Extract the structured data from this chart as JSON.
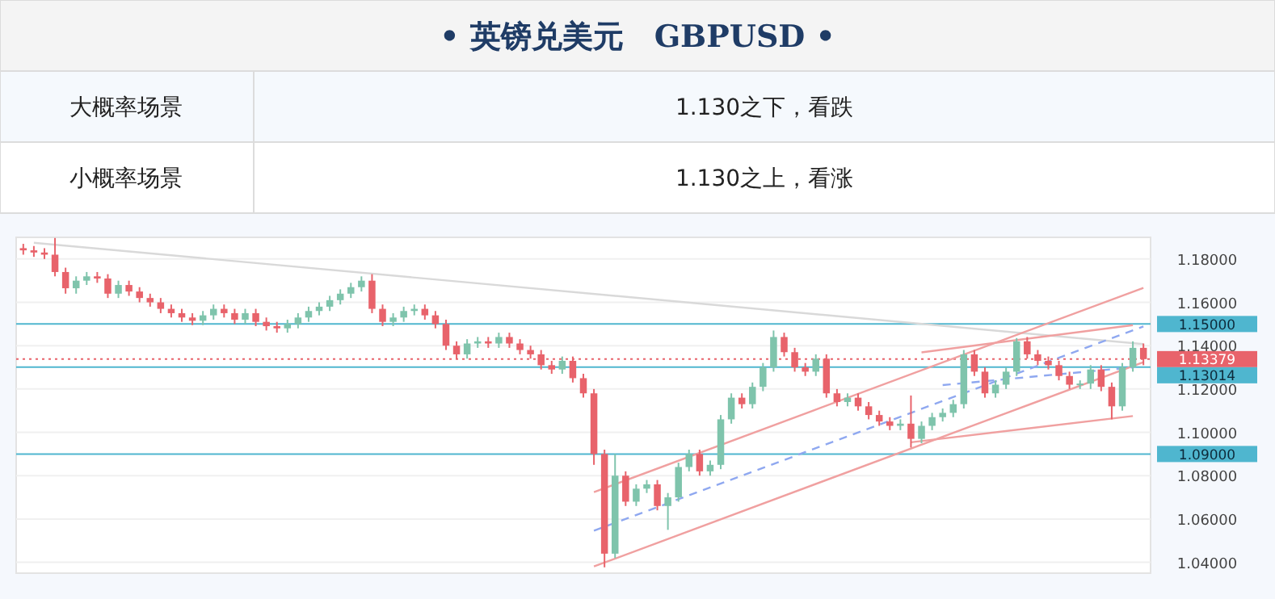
{
  "chart_data": {
    "type": "candlestick",
    "title": "• 英镑兑美元　GBPUSD •",
    "annotations": [
      "大概率场景",
      "1.130之下，看跌",
      "小概率场景",
      "1.130之上，看涨"
    ],
    "categories": [
      null,
      null,
      null,
      null,
      null,
      null,
      null,
      null,
      null,
      null,
      null,
      null,
      null,
      null,
      null,
      null,
      null,
      null,
      null,
      null,
      null,
      null,
      null,
      null,
      null,
      null,
      null,
      null,
      null,
      null,
      null,
      null,
      null,
      null,
      null,
      null,
      null,
      null,
      null,
      null,
      null,
      null,
      null,
      null,
      null,
      null,
      null,
      null,
      null,
      null,
      null,
      null,
      null,
      null,
      null,
      null,
      null,
      null,
      null,
      null,
      null,
      null,
      null,
      null,
      null,
      null,
      null,
      null,
      null,
      null,
      null,
      null,
      null,
      null,
      null,
      null,
      null,
      null,
      null,
      null,
      null,
      null,
      null,
      null,
      null,
      null,
      null,
      null,
      null,
      null,
      null,
      null,
      null,
      null,
      null,
      null,
      null,
      null,
      null,
      null,
      null,
      null,
      null,
      null,
      null,
      null,
      null
    ],
    "ohlc": [
      [
        1.185,
        1.187,
        1.182,
        1.184
      ],
      [
        1.184,
        1.186,
        1.181,
        1.183
      ],
      [
        1.183,
        1.185,
        1.18,
        1.182
      ],
      [
        1.182,
        1.1897,
        1.172,
        1.174
      ],
      [
        1.174,
        1.176,
        1.164,
        1.1665
      ],
      [
        1.1665,
        1.172,
        1.164,
        1.17
      ],
      [
        1.17,
        1.174,
        1.168,
        1.172
      ],
      [
        1.172,
        1.174,
        1.169,
        1.171
      ],
      [
        1.171,
        1.173,
        1.162,
        1.164
      ],
      [
        1.164,
        1.17,
        1.162,
        1.168
      ],
      [
        1.168,
        1.17,
        1.163,
        1.165
      ],
      [
        1.165,
        1.167,
        1.16,
        1.162
      ],
      [
        1.162,
        1.164,
        1.158,
        1.16
      ],
      [
        1.16,
        1.162,
        1.155,
        1.157
      ],
      [
        1.157,
        1.159,
        1.153,
        1.155
      ],
      [
        1.155,
        1.157,
        1.151,
        1.153
      ],
      [
        1.153,
        1.155,
        1.1495,
        1.1515
      ],
      [
        1.1515,
        1.156,
        1.1495,
        1.154
      ],
      [
        1.154,
        1.159,
        1.152,
        1.157
      ],
      [
        1.157,
        1.159,
        1.153,
        1.155
      ],
      [
        1.155,
        1.157,
        1.15,
        1.152
      ],
      [
        1.152,
        1.157,
        1.15,
        1.155
      ],
      [
        1.155,
        1.157,
        1.149,
        1.151
      ],
      [
        1.151,
        1.153,
        1.147,
        1.149
      ],
      [
        1.149,
        1.151,
        1.146,
        1.148
      ],
      [
        1.148,
        1.152,
        1.146,
        1.15
      ],
      [
        1.15,
        1.155,
        1.148,
        1.153
      ],
      [
        1.153,
        1.158,
        1.151,
        1.156
      ],
      [
        1.156,
        1.16,
        1.154,
        1.158
      ],
      [
        1.158,
        1.163,
        1.156,
        1.161
      ],
      [
        1.161,
        1.166,
        1.159,
        1.164
      ],
      [
        1.164,
        1.169,
        1.162,
        1.167
      ],
      [
        1.167,
        1.172,
        1.165,
        1.17
      ],
      [
        1.17,
        1.173,
        1.155,
        1.157
      ],
      [
        1.157,
        1.159,
        1.149,
        1.151
      ],
      [
        1.151,
        1.155,
        1.149,
        1.153
      ],
      [
        1.153,
        1.158,
        1.151,
        1.156
      ],
      [
        1.156,
        1.159,
        1.154,
        1.157
      ],
      [
        1.157,
        1.159,
        1.152,
        1.154
      ],
      [
        1.154,
        1.156,
        1.148,
        1.15
      ],
      [
        1.15,
        1.152,
        1.138,
        1.14
      ],
      [
        1.14,
        1.142,
        1.134,
        1.136
      ],
      [
        1.136,
        1.143,
        1.134,
        1.141
      ],
      [
        1.141,
        1.144,
        1.139,
        1.142
      ],
      [
        1.142,
        1.144,
        1.139,
        1.141
      ],
      [
        1.141,
        1.146,
        1.139,
        1.144
      ],
      [
        1.144,
        1.146,
        1.139,
        1.141
      ],
      [
        1.141,
        1.143,
        1.136,
        1.138
      ],
      [
        1.138,
        1.14,
        1.134,
        1.136
      ],
      [
        1.136,
        1.138,
        1.129,
        1.131
      ],
      [
        1.131,
        1.133,
        1.127,
        1.129
      ],
      [
        1.129,
        1.135,
        1.127,
        1.133
      ],
      [
        1.133,
        1.135,
        1.123,
        1.125
      ],
      [
        1.125,
        1.127,
        1.116,
        1.118
      ],
      [
        1.118,
        1.12,
        1.085,
        1.09
      ],
      [
        1.09,
        1.092,
        1.0377,
        1.044
      ],
      [
        1.044,
        1.09,
        1.042,
        1.08
      ],
      [
        1.08,
        1.082,
        1.066,
        1.068
      ],
      [
        1.068,
        1.076,
        1.066,
        1.074
      ],
      [
        1.074,
        1.078,
        1.072,
        1.076
      ],
      [
        1.076,
        1.078,
        1.064,
        1.066
      ],
      [
        1.066,
        1.072,
        1.055,
        1.07
      ],
      [
        1.07,
        1.086,
        1.068,
        1.084
      ],
      [
        1.084,
        1.092,
        1.082,
        1.09
      ],
      [
        1.09,
        1.092,
        1.08,
        1.082
      ],
      [
        1.082,
        1.087,
        1.08,
        1.085
      ],
      [
        1.085,
        1.108,
        1.083,
        1.106
      ],
      [
        1.106,
        1.118,
        1.104,
        1.116
      ],
      [
        1.116,
        1.118,
        1.111,
        1.113
      ],
      [
        1.113,
        1.123,
        1.111,
        1.121
      ],
      [
        1.121,
        1.132,
        1.119,
        1.13
      ],
      [
        1.13,
        1.147,
        1.128,
        1.144
      ],
      [
        1.144,
        1.146,
        1.135,
        1.137
      ],
      [
        1.137,
        1.139,
        1.128,
        1.13
      ],
      [
        1.13,
        1.132,
        1.126,
        1.128
      ],
      [
        1.128,
        1.136,
        1.126,
        1.134
      ],
      [
        1.134,
        1.136,
        1.116,
        1.118
      ],
      [
        1.118,
        1.12,
        1.112,
        1.114
      ],
      [
        1.114,
        1.118,
        1.112,
        1.116
      ],
      [
        1.116,
        1.118,
        1.11,
        1.112
      ],
      [
        1.112,
        1.114,
        1.106,
        1.108
      ],
      [
        1.108,
        1.11,
        1.103,
        1.105
      ],
      [
        1.105,
        1.107,
        1.101,
        1.103
      ],
      [
        1.103,
        1.106,
        1.101,
        1.104
      ],
      [
        1.104,
        1.117,
        1.093,
        1.097
      ],
      [
        1.097,
        1.105,
        1.095,
        1.103
      ],
      [
        1.103,
        1.109,
        1.101,
        1.107
      ],
      [
        1.107,
        1.111,
        1.105,
        1.109
      ],
      [
        1.109,
        1.115,
        1.107,
        1.113
      ],
      [
        1.113,
        1.138,
        1.111,
        1.136
      ],
      [
        1.136,
        1.138,
        1.126,
        1.128
      ],
      [
        1.128,
        1.13,
        1.116,
        1.118
      ],
      [
        1.118,
        1.124,
        1.116,
        1.122
      ],
      [
        1.122,
        1.13,
        1.12,
        1.128
      ],
      [
        1.128,
        1.1435,
        1.126,
        1.142
      ],
      [
        1.142,
        1.144,
        1.134,
        1.136
      ],
      [
        1.136,
        1.138,
        1.131,
        1.133
      ],
      [
        1.133,
        1.135,
        1.129,
        1.131
      ],
      [
        1.131,
        1.133,
        1.124,
        1.126
      ],
      [
        1.126,
        1.128,
        1.12,
        1.122
      ],
      [
        1.122,
        1.124,
        1.12,
        1.1225
      ],
      [
        1.1225,
        1.131,
        1.12,
        1.129
      ],
      [
        1.129,
        1.131,
        1.119,
        1.121
      ],
      [
        1.121,
        1.123,
        1.106,
        1.112
      ],
      [
        1.112,
        1.132,
        1.11,
        1.13
      ],
      [
        1.13,
        1.142,
        1.128,
        1.139
      ],
      [
        1.139,
        1.141,
        1.131,
        1.13379
      ]
    ],
    "series": [
      {
        "type": "line",
        "color": "#d9d9d9",
        "line_style": "solid",
        "values": [
          null,
          1.1875,
          null,
          null,
          null,
          null,
          null,
          null,
          null,
          null,
          null,
          null,
          null,
          null,
          null,
          null,
          null,
          null,
          null,
          null,
          null,
          null,
          null,
          null,
          null,
          null,
          null,
          null,
          null,
          null,
          null,
          null,
          null,
          null,
          null,
          null,
          null,
          null,
          null,
          null,
          null,
          null,
          null,
          null,
          null,
          null,
          null,
          null,
          null,
          null,
          null,
          null,
          null,
          null,
          null,
          null,
          null,
          null,
          null,
          null,
          null,
          null,
          null,
          null,
          null,
          null,
          null,
          null,
          null,
          null,
          null,
          null,
          null,
          null,
          null,
          null,
          null,
          null,
          null,
          null,
          null,
          null,
          null,
          null,
          null,
          null,
          null,
          null,
          null,
          null,
          null,
          null,
          null,
          null,
          null,
          null,
          null,
          null,
          null,
          null,
          null,
          null,
          null,
          null,
          null,
          null,
          1.1407
        ]
      },
      {
        "type": "line",
        "color": "#f0a0a0",
        "line_style": "solid",
        "values": [
          null,
          null,
          null,
          null,
          null,
          null,
          null,
          null,
          null,
          null,
          null,
          null,
          null,
          null,
          null,
          null,
          null,
          null,
          null,
          null,
          null,
          null,
          null,
          null,
          null,
          null,
          null,
          null,
          null,
          null,
          null,
          null,
          null,
          null,
          null,
          null,
          null,
          null,
          null,
          null,
          null,
          null,
          null,
          null,
          null,
          null,
          null,
          null,
          null,
          null,
          null,
          null,
          null,
          null,
          1.0724,
          null,
          null,
          null,
          null,
          null,
          null,
          null,
          null,
          null,
          null,
          null,
          null,
          null,
          null,
          null,
          null,
          null,
          null,
          null,
          null,
          null,
          null,
          null,
          null,
          null,
          null,
          null,
          null,
          null,
          null,
          null,
          null,
          null,
          null,
          null,
          null,
          null,
          null,
          null,
          null,
          null,
          null,
          null,
          null,
          null,
          null,
          null,
          null,
          null,
          null,
          null,
          1.1667
        ]
      },
      {
        "type": "line",
        "color": "#f0a0a0",
        "line_style": "solid",
        "values": [
          null,
          null,
          null,
          null,
          null,
          null,
          null,
          null,
          null,
          null,
          null,
          null,
          null,
          null,
          null,
          null,
          null,
          null,
          null,
          null,
          null,
          null,
          null,
          null,
          null,
          null,
          null,
          null,
          null,
          null,
          null,
          null,
          null,
          null,
          null,
          null,
          null,
          null,
          null,
          null,
          null,
          null,
          null,
          null,
          null,
          null,
          null,
          null,
          null,
          null,
          null,
          null,
          null,
          null,
          1.0381,
          null,
          null,
          null,
          null,
          null,
          null,
          null,
          null,
          null,
          null,
          null,
          null,
          null,
          null,
          null,
          null,
          null,
          null,
          null,
          null,
          null,
          null,
          null,
          null,
          null,
          null,
          null,
          null,
          null,
          null,
          null,
          null,
          null,
          null,
          null,
          null,
          null,
          null,
          null,
          null,
          null,
          null,
          null,
          null,
          null,
          null,
          null,
          null,
          null,
          null,
          null,
          1.1324
        ]
      },
      {
        "type": "line",
        "color": "#8fa8f0",
        "line_style": "dashed",
        "values": [
          null,
          null,
          null,
          null,
          null,
          null,
          null,
          null,
          null,
          null,
          null,
          null,
          null,
          null,
          null,
          null,
          null,
          null,
          null,
          null,
          null,
          null,
          null,
          null,
          null,
          null,
          null,
          null,
          null,
          null,
          null,
          null,
          null,
          null,
          null,
          null,
          null,
          null,
          null,
          null,
          null,
          null,
          null,
          null,
          null,
          null,
          null,
          null,
          null,
          null,
          null,
          null,
          null,
          null,
          1.0546,
          null,
          null,
          null,
          null,
          null,
          null,
          null,
          null,
          null,
          null,
          null,
          null,
          null,
          null,
          null,
          null,
          null,
          null,
          null,
          null,
          null,
          null,
          null,
          null,
          null,
          null,
          null,
          null,
          null,
          null,
          null,
          null,
          null,
          null,
          null,
          null,
          null,
          null,
          null,
          null,
          null,
          null,
          null,
          null,
          null,
          null,
          null,
          null,
          null,
          null,
          null,
          1.1489
        ]
      },
      {
        "type": "line",
        "color": "#f0a0a0",
        "line_style": "solid",
        "values": [
          null,
          null,
          null,
          null,
          null,
          null,
          null,
          null,
          null,
          null,
          null,
          null,
          null,
          null,
          null,
          null,
          null,
          null,
          null,
          null,
          null,
          null,
          null,
          null,
          null,
          null,
          null,
          null,
          null,
          null,
          null,
          null,
          null,
          null,
          null,
          null,
          null,
          null,
          null,
          null,
          null,
          null,
          null,
          null,
          null,
          null,
          null,
          null,
          null,
          null,
          null,
          null,
          null,
          null,
          null,
          null,
          null,
          null,
          null,
          null,
          null,
          null,
          null,
          null,
          null,
          null,
          null,
          null,
          null,
          null,
          null,
          null,
          null,
          null,
          null,
          null,
          null,
          null,
          null,
          null,
          null,
          null,
          null,
          null,
          null,
          1.1369,
          null,
          null,
          null,
          null,
          null,
          null,
          null,
          null,
          null,
          null,
          null,
          null,
          null,
          null,
          null,
          null,
          null,
          null,
          null,
          1.1495,
          null
        ]
      },
      {
        "type": "line",
        "color": "#f0a0a0",
        "line_style": "solid",
        "values": [
          null,
          null,
          null,
          null,
          null,
          null,
          null,
          null,
          null,
          null,
          null,
          null,
          null,
          null,
          null,
          null,
          null,
          null,
          null,
          null,
          null,
          null,
          null,
          null,
          null,
          null,
          null,
          null,
          null,
          null,
          null,
          null,
          null,
          null,
          null,
          null,
          null,
          null,
          null,
          null,
          null,
          null,
          null,
          null,
          null,
          null,
          null,
          null,
          null,
          null,
          null,
          null,
          null,
          null,
          null,
          null,
          null,
          null,
          null,
          null,
          null,
          null,
          null,
          null,
          null,
          null,
          null,
          null,
          null,
          null,
          null,
          null,
          null,
          null,
          null,
          null,
          null,
          null,
          null,
          null,
          null,
          null,
          null,
          null,
          1.0954,
          null,
          null,
          null,
          null,
          null,
          null,
          null,
          null,
          null,
          null,
          null,
          null,
          null,
          null,
          null,
          null,
          null,
          null,
          null,
          null,
          1.1075,
          null
        ]
      },
      {
        "type": "line",
        "color": "#8fa8f0",
        "line_style": "dashed",
        "values": [
          null,
          null,
          null,
          null,
          null,
          null,
          null,
          null,
          null,
          null,
          null,
          null,
          null,
          null,
          null,
          null,
          null,
          null,
          null,
          null,
          null,
          null,
          null,
          null,
          null,
          null,
          null,
          null,
          null,
          null,
          null,
          null,
          null,
          null,
          null,
          null,
          null,
          null,
          null,
          null,
          null,
          null,
          null,
          null,
          null,
          null,
          null,
          null,
          null,
          null,
          null,
          null,
          null,
          null,
          null,
          null,
          null,
          null,
          null,
          null,
          null,
          null,
          null,
          null,
          null,
          null,
          null,
          null,
          null,
          null,
          null,
          null,
          null,
          null,
          null,
          null,
          null,
          null,
          null,
          null,
          null,
          null,
          null,
          null,
          null,
          null,
          null,
          1.1218,
          null,
          null,
          null,
          null,
          null,
          null,
          null,
          null,
          null,
          null,
          null,
          null,
          null,
          null,
          null,
          null,
          null,
          1.13,
          null
        ]
      }
    ],
    "ref_lines": [
      {
        "axis": "y",
        "value": 1.15,
        "label": "1.15000",
        "color": "#4fb6cf",
        "line_style": "solid"
      },
      {
        "axis": "y",
        "value": 1.13379,
        "label": "1.13379",
        "color": "#e8636b",
        "line_style": "dotted"
      },
      {
        "axis": "y",
        "value": 1.13014,
        "label": "1.13014",
        "color": "#4fb6cf",
        "line_style": "solid"
      },
      {
        "axis": "y",
        "value": 1.09,
        "label": "1.09000",
        "color": "#4fb6cf",
        "line_style": "solid"
      }
    ],
    "ylim": [
      1.035,
      1.19
    ],
    "yticks": [
      {
        "value": 1.04,
        "label": "1.04000"
      },
      {
        "value": 1.06,
        "label": "1.06000"
      },
      {
        "value": 1.08,
        "label": "1.08000"
      },
      {
        "value": 1.1,
        "label": "1.10000"
      },
      {
        "value": 1.12,
        "label": "1.12000"
      },
      {
        "value": 1.14,
        "label": "1.14000"
      },
      {
        "value": 1.16,
        "label": "1.16000"
      },
      {
        "value": 1.18,
        "label": "1.18000"
      }
    ],
    "tick_labels": "y",
    "grid": "y"
  }
}
